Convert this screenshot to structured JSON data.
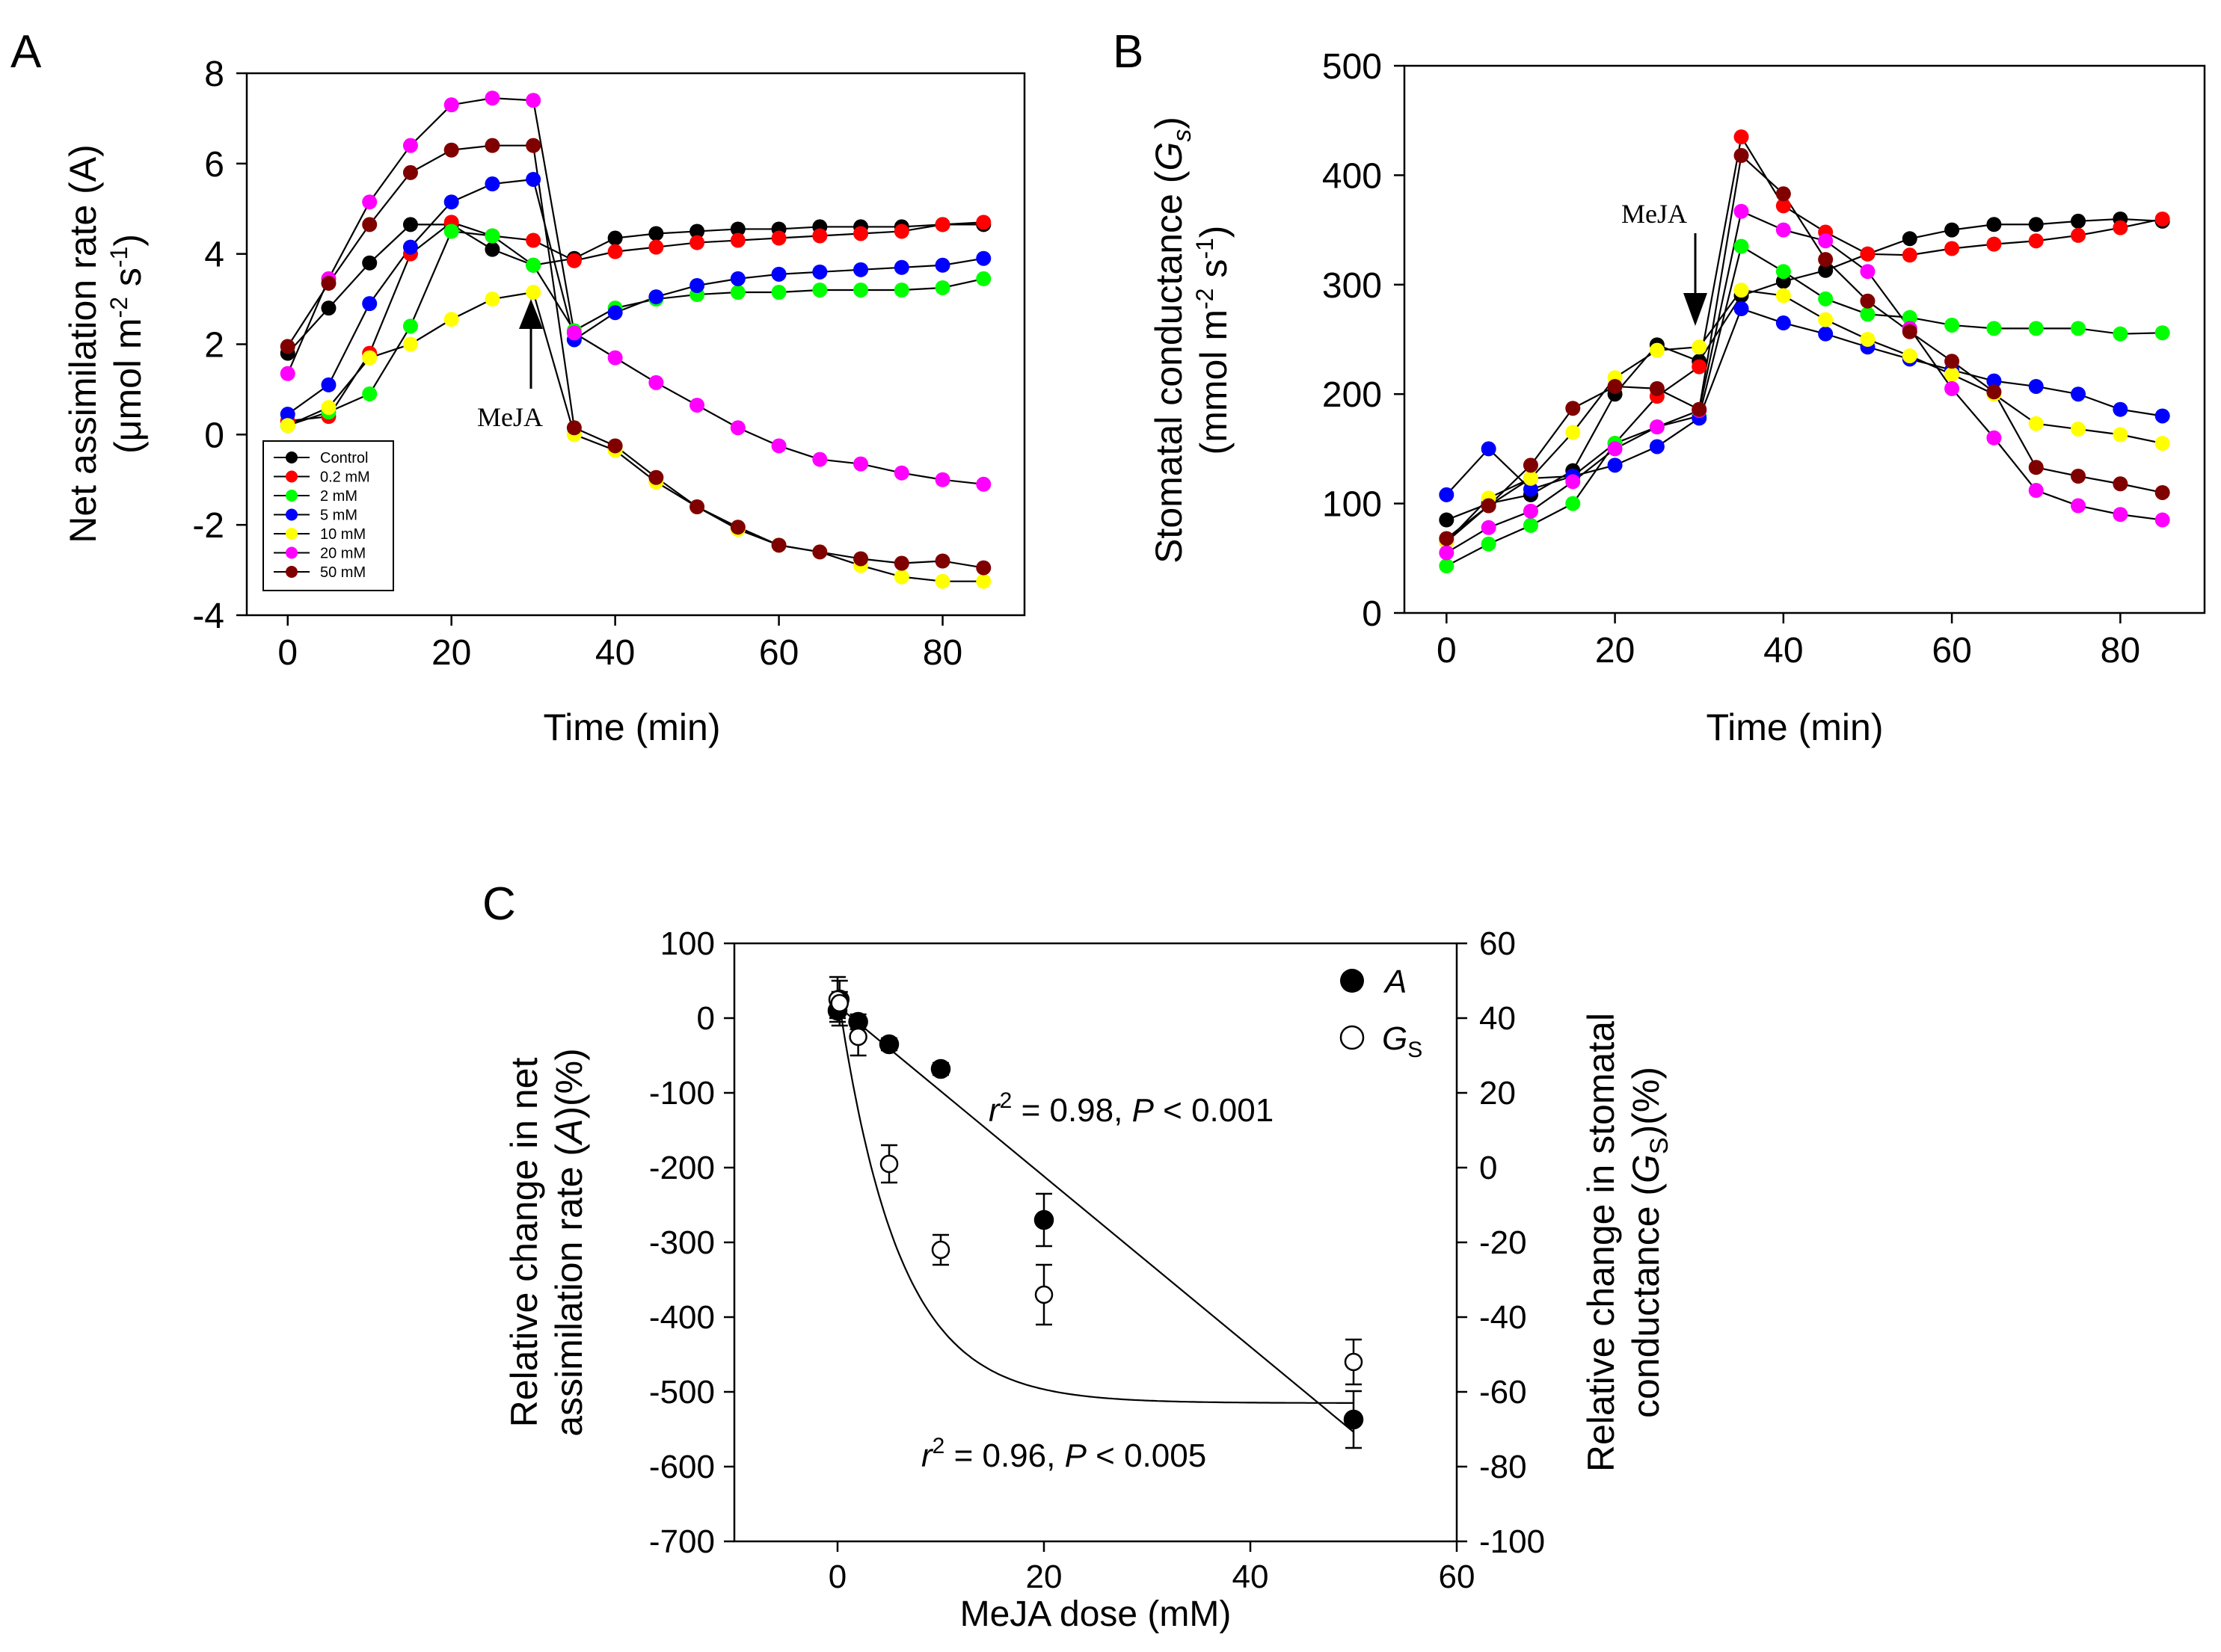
{
  "colors": {
    "Control": "#000000",
    "0.2 mM": "#ff0000",
    "2 mM": "#00ff00",
    "5 mM": "#0000ff",
    "10 mM": "#ffff00",
    "20 mM": "#ff00ff",
    "50 mM": "#800000"
  },
  "chart_data": [
    {
      "panel": "A",
      "type": "line",
      "xlabel": "Time (min)",
      "ylabel_line1": "Net assimilation rate (A)",
      "ylabel_line2": "(μmol m-2 s-1)",
      "xlim": [
        -5,
        90
      ],
      "ylim": [
        -4,
        8
      ],
      "xticks": [
        0,
        20,
        40,
        60,
        80
      ],
      "yticks": [
        -4,
        -2,
        0,
        2,
        4,
        6,
        8
      ],
      "annotation": {
        "text": "MeJA",
        "x": 30,
        "y": 3.1
      },
      "legend_position": "bottom-left",
      "x": [
        0,
        5,
        10,
        15,
        20,
        25,
        30,
        35,
        40,
        45,
        50,
        55,
        60,
        65,
        70,
        75,
        80,
        85
      ],
      "series": [
        {
          "name": "Control",
          "values": [
            1.8,
            2.8,
            3.8,
            4.65,
            4.65,
            4.1,
            3.75,
            3.9,
            4.35,
            4.45,
            4.5,
            4.55,
            4.55,
            4.6,
            4.6,
            4.6,
            4.65,
            4.65
          ]
        },
        {
          "name": "0.2 mM",
          "values": [
            0.3,
            0.4,
            1.8,
            4.0,
            4.7,
            4.4,
            4.3,
            3.85,
            4.05,
            4.15,
            4.25,
            4.3,
            4.35,
            4.4,
            4.45,
            4.5,
            4.65,
            4.7
          ]
        },
        {
          "name": "2 mM",
          "values": [
            0.2,
            0.5,
            0.9,
            2.4,
            4.5,
            4.4,
            3.75,
            2.3,
            2.8,
            3.0,
            3.1,
            3.15,
            3.15,
            3.2,
            3.2,
            3.2,
            3.25,
            3.45
          ]
        },
        {
          "name": "5 mM",
          "values": [
            0.45,
            1.1,
            2.9,
            4.15,
            5.15,
            5.55,
            5.65,
            2.1,
            2.7,
            3.05,
            3.3,
            3.45,
            3.55,
            3.6,
            3.65,
            3.7,
            3.75,
            3.9
          ]
        },
        {
          "name": "10 mM",
          "values": [
            0.2,
            0.6,
            1.7,
            2.0,
            2.55,
            3.0,
            3.15,
            0.0,
            -0.35,
            -1.05,
            -1.6,
            -2.1,
            -2.45,
            -2.6,
            -2.9,
            -3.15,
            -3.25,
            -3.25
          ]
        },
        {
          "name": "20 mM",
          "values": [
            1.35,
            3.45,
            5.15,
            6.4,
            7.3,
            7.45,
            7.4,
            2.25,
            1.7,
            1.15,
            0.65,
            0.15,
            -0.25,
            -0.55,
            -0.65,
            -0.85,
            -1.0,
            -1.1
          ]
        },
        {
          "name": "50 mM",
          "values": [
            1.95,
            3.35,
            4.65,
            5.8,
            6.3,
            6.4,
            6.4,
            0.15,
            -0.25,
            -0.95,
            -1.6,
            -2.05,
            -2.45,
            -2.6,
            -2.75,
            -2.85,
            -2.8,
            -2.95
          ]
        }
      ]
    },
    {
      "panel": "B",
      "type": "line",
      "xlabel": "Time (min)",
      "ylabel_line1": "Stomatal conductance (Gs)",
      "ylabel_line2": "(mmol m-2 s-1)",
      "xlim": [
        -5,
        90
      ],
      "ylim": [
        0,
        500
      ],
      "xticks": [
        0,
        20,
        40,
        60,
        80
      ],
      "yticks": [
        0,
        100,
        200,
        300,
        400,
        500
      ],
      "annotation": {
        "text": "MeJA",
        "x": 30,
        "y": 258
      },
      "x": [
        0,
        5,
        10,
        15,
        20,
        25,
        30,
        35,
        40,
        45,
        50,
        55,
        60,
        65,
        70,
        75,
        80,
        85
      ],
      "series": [
        {
          "name": "Control",
          "values": [
            85,
            100,
            108,
            130,
            200,
            245,
            230,
            290,
            303,
            313,
            328,
            342,
            350,
            355,
            355,
            358,
            360,
            358
          ]
        },
        {
          "name": "0.2 mM",
          "values": [
            65,
            98,
            123,
            125,
            155,
            198,
            225,
            435,
            372,
            348,
            328,
            327,
            333,
            337,
            340,
            345,
            352,
            360
          ]
        },
        {
          "name": "2 mM",
          "values": [
            43,
            63,
            80,
            100,
            155,
            170,
            180,
            335,
            312,
            287,
            273,
            270,
            263,
            260,
            260,
            260,
            255,
            256
          ]
        },
        {
          "name": "5 mM",
          "values": [
            108,
            150,
            113,
            125,
            135,
            152,
            178,
            278,
            265,
            255,
            243,
            232,
            222,
            212,
            207,
            200,
            186,
            180
          ]
        },
        {
          "name": "10 mM",
          "values": [
            65,
            105,
            123,
            165,
            215,
            240,
            243,
            295,
            290,
            268,
            250,
            235,
            218,
            200,
            173,
            168,
            163,
            155
          ]
        },
        {
          "name": "20 mM",
          "values": [
            55,
            78,
            93,
            120,
            150,
            170,
            185,
            367,
            350,
            340,
            312,
            260,
            205,
            160,
            112,
            98,
            90,
            85
          ]
        },
        {
          "name": "50 mM",
          "values": [
            68,
            98,
            135,
            187,
            207,
            205,
            186,
            418,
            383,
            323,
            285,
            257,
            230,
            202,
            133,
            125,
            118,
            110
          ]
        }
      ]
    },
    {
      "panel": "C",
      "type": "scatter",
      "xlabel": "MeJA dose (mM)",
      "ylabel_left_line1": "Relative change in net",
      "ylabel_left_line2": "assimilation rate (A)(%)",
      "ylabel_right_line1": "Relative change in stomatal",
      "ylabel_right_line2": "conductance (Gs)(%)",
      "xlim": [
        -10,
        60
      ],
      "ylim_left": [
        -700,
        100
      ],
      "ylim_right": [
        -100,
        60
      ],
      "xticks": [
        0,
        20,
        40,
        60
      ],
      "yticks_left": [
        -700,
        -600,
        -500,
        -400,
        -300,
        -200,
        -100,
        0,
        100
      ],
      "yticks_right": [
        -100,
        -80,
        -60,
        -40,
        -20,
        0,
        20,
        40,
        60
      ],
      "series": [
        {
          "name": "A",
          "axis": "left",
          "marker": "filled",
          "x": [
            0,
            0.2,
            2,
            5,
            10,
            20,
            50
          ],
          "y": [
            10,
            25,
            -5,
            -35,
            -68,
            -270,
            -537
          ],
          "err": [
            10,
            10,
            10,
            8,
            8,
            35,
            38
          ]
        },
        {
          "name": "GS",
          "axis": "right",
          "marker": "open",
          "x": [
            0,
            0.2,
            2,
            5,
            10,
            20,
            50
          ],
          "y": [
            45,
            44,
            35,
            1,
            -22,
            -34,
            -52
          ],
          "err": [
            6,
            6,
            5,
            5,
            4,
            8,
            6
          ]
        }
      ],
      "fits": [
        {
          "series": "A",
          "kind": "linear",
          "label_pre": " = 0.98, ",
          "label_post": " < 0.001"
        },
        {
          "series": "GS",
          "kind": "exponential decay",
          "plateau": -63,
          "amplitude": 110,
          "k": 0.17,
          "label_pre": " = 0.96, ",
          "label_post": " < 0.005"
        }
      ],
      "legend": [
        "A",
        "GS"
      ],
      "legend_position": "top-right"
    }
  ],
  "panel_labels": [
    "A",
    "B",
    "C"
  ],
  "legend_labels": [
    "Control",
    "0.2 mM",
    "2 mM",
    "5 mM",
    "10 mM",
    "20 mM",
    "50 mM"
  ],
  "unit_superscripts": {
    "m_exp": "-2",
    "s_exp": "-1"
  },
  "subscript_s": "S",
  "subscript_s_lower": "s",
  "italic_A": "A",
  "italic_G": "G",
  "italic_r": "r",
  "sup_2": "2",
  "italic_P": "P"
}
